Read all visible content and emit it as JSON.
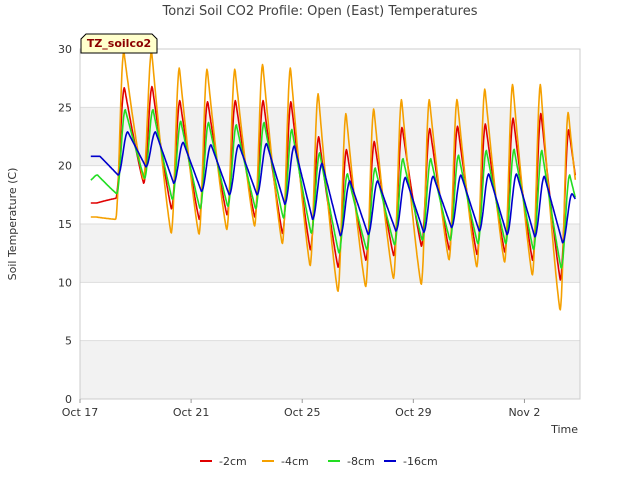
{
  "chart_data": {
    "type": "line",
    "title": "Tonzi Soil CO2 Profile: Open (East) Temperatures",
    "xlabel": "Time",
    "ylabel": "Soil Temperature (C)",
    "badge": "TZ_soilco2",
    "ylim": [
      0,
      30
    ],
    "yticks": [
      0,
      5,
      10,
      15,
      20,
      25,
      30
    ],
    "xlim": [
      0,
      18
    ],
    "x_unit": "days since Oct 17",
    "xticks": [
      {
        "x": 0,
        "label": "Oct 17"
      },
      {
        "x": 4,
        "label": "Oct 21"
      },
      {
        "x": 8,
        "label": "Oct 25"
      },
      {
        "x": 12,
        "label": "Oct 29"
      },
      {
        "x": 16,
        "label": "Nov 2"
      }
    ],
    "grid": true,
    "legend_position": "bottom",
    "series": [
      {
        "name": "-2cm",
        "color": "#e00000",
        "daily_min": [
          16.8,
          17.2,
          18.5,
          16.3,
          15.4,
          15.8,
          15.6,
          14.2,
          12.8,
          11.3,
          11.9,
          12.3,
          13.1,
          12.8,
          12.4,
          12.6,
          11.9,
          10.2,
          12.4
        ],
        "daily_max": [
          null,
          26.7,
          26.8,
          25.6,
          25.5,
          25.6,
          25.6,
          25.5,
          22.5,
          21.4,
          22.1,
          23.3,
          23.2,
          23.4,
          23.6,
          24.1,
          24.5,
          23.1,
          22.0
        ]
      },
      {
        "name": "-4cm",
        "color": "#f5a000",
        "daily_min": [
          15.6,
          15.4,
          18.8,
          14.2,
          14.1,
          14.5,
          14.8,
          13.3,
          11.4,
          9.2,
          9.6,
          10.3,
          9.8,
          11.9,
          11.3,
          11.7,
          10.6,
          7.6,
          10.4
        ],
        "daily_max": [
          null,
          29.8,
          29.8,
          28.4,
          28.3,
          28.3,
          28.7,
          28.4,
          26.2,
          24.5,
          24.9,
          25.7,
          25.7,
          25.7,
          26.6,
          27.0,
          27.0,
          24.6,
          24.5
        ]
      },
      {
        "name": "-8cm",
        "color": "#22dd22",
        "daily_min": [
          18.7,
          17.6,
          18.9,
          17.1,
          16.3,
          16.5,
          16.3,
          15.5,
          14.2,
          12.5,
          12.8,
          13.2,
          13.6,
          13.6,
          13.3,
          13.3,
          12.8,
          11.2,
          12.9
        ],
        "daily_max": [
          19.2,
          24.8,
          24.8,
          23.8,
          23.7,
          23.5,
          23.7,
          23.1,
          21.1,
          19.3,
          19.8,
          20.6,
          20.6,
          20.9,
          21.3,
          21.4,
          21.3,
          19.2,
          18.9
        ]
      },
      {
        "name": "-16cm",
        "color": "#0000cc",
        "daily_min": [
          20.8,
          19.2,
          19.9,
          18.5,
          17.8,
          17.5,
          17.5,
          16.7,
          15.4,
          14.0,
          14.1,
          14.4,
          14.3,
          14.7,
          14.4,
          14.1,
          13.9,
          13.4,
          14.9
        ],
        "daily_max": [
          20.8,
          22.9,
          22.9,
          22.0,
          21.8,
          21.8,
          21.9,
          21.7,
          20.2,
          18.7,
          18.7,
          19.0,
          19.1,
          19.2,
          19.3,
          19.3,
          19.1,
          17.6,
          17.7
        ]
      }
    ]
  }
}
